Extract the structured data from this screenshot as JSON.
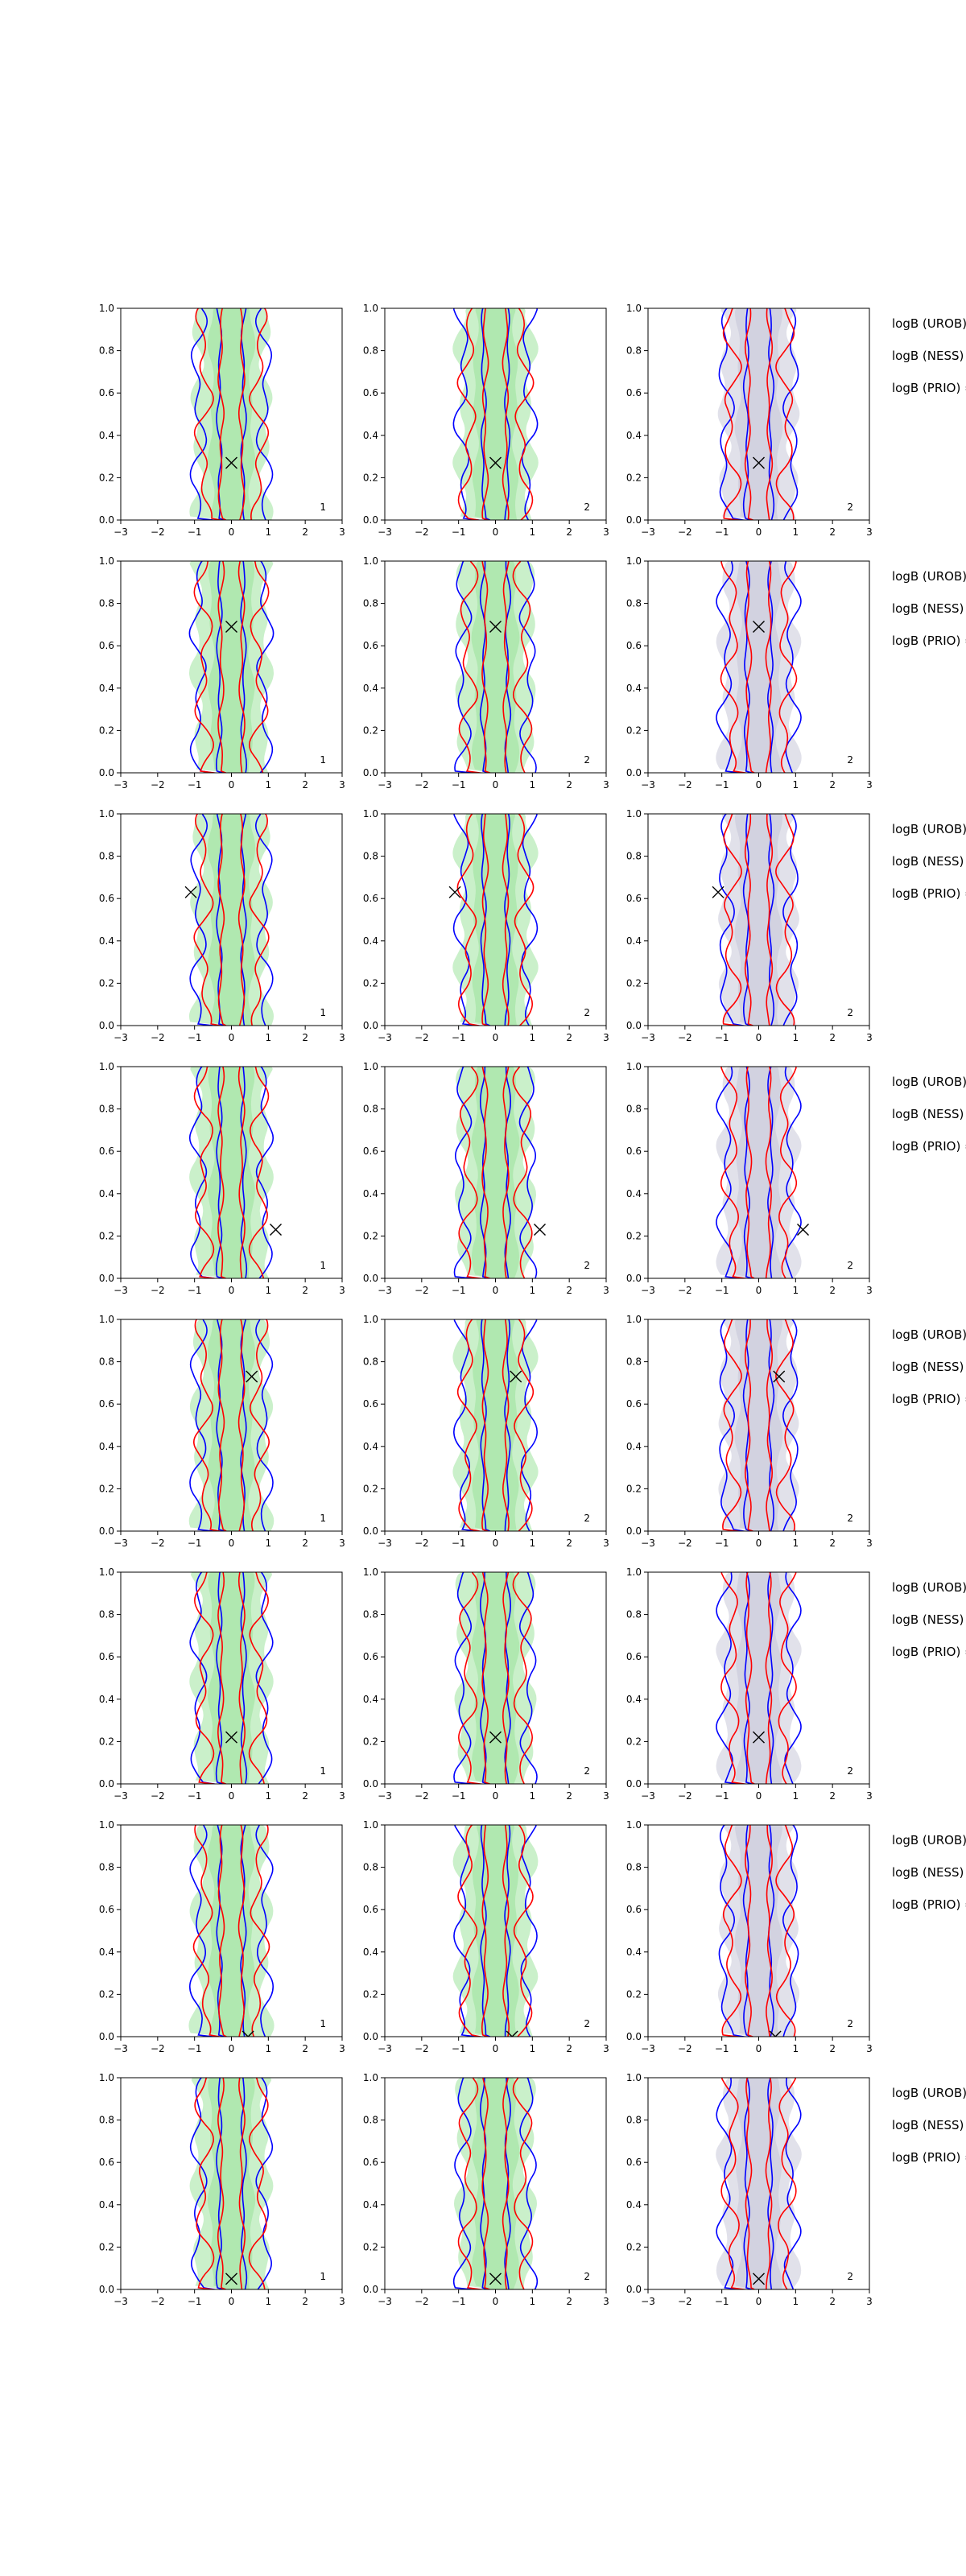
{
  "chart_data": {
    "type": "contour",
    "layout": {
      "rows": 8,
      "cols": 3
    },
    "xlim": [
      -3,
      3
    ],
    "ylim": [
      0,
      1
    ],
    "xticks": [
      "−3",
      "−2",
      "−1",
      "0",
      "1",
      "2",
      "3"
    ],
    "yticks": [
      "0.0",
      "0.2",
      "0.4",
      "0.6",
      "0.8",
      "1.0"
    ],
    "colors": {
      "fill_green": "#9fe39f",
      "fill_grey": "#c8c8d8",
      "contour_blue": "#0000ff",
      "contour_red": "#ff0000"
    },
    "side_labels": [
      "logB (UROB) =",
      "logB (NESS) =",
      "logB (PRIO) ="
    ],
    "panel_labels": [
      "1",
      "2",
      "2"
    ],
    "markers": [
      {
        "x": 0.0,
        "y": 0.27
      },
      {
        "x": 0.0,
        "y": 0.69
      },
      {
        "x": -1.1,
        "y": 0.63
      },
      {
        "x": 1.2,
        "y": 0.23
      },
      {
        "x": 0.55,
        "y": 0.73
      },
      {
        "x": 0.0,
        "y": 0.22
      },
      {
        "x": 0.45,
        "y": 0.0
      },
      {
        "x": 0.0,
        "y": 0.05
      }
    ]
  }
}
